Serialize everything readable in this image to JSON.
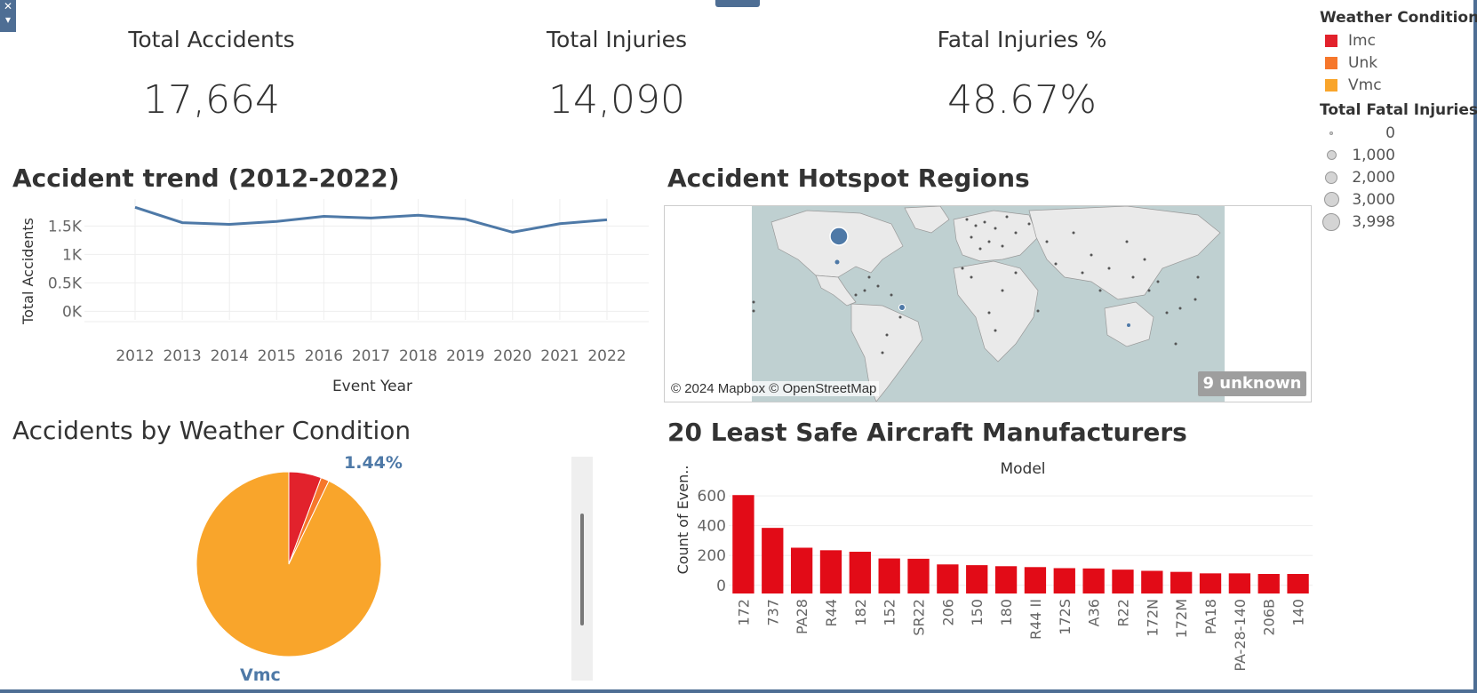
{
  "kpis": [
    {
      "title": "Total Accidents",
      "value": "17,664"
    },
    {
      "title": "Total Injuries",
      "value": "14,090"
    },
    {
      "title": "Fatal Injuries %",
      "value": "48.67%"
    }
  ],
  "legend": {
    "weather_title": "Weather Condition",
    "weather_items": [
      {
        "label": "Imc",
        "color": "#e2222c"
      },
      {
        "label": "Unk",
        "color": "#f6772b"
      },
      {
        "label": "Vmc",
        "color": "#f9a52b"
      }
    ],
    "size_title": "Total Fatal Injuries",
    "size_items": [
      "0",
      "1,000",
      "2,000",
      "3,000",
      "3,998"
    ]
  },
  "trend": {
    "title": "Accident trend (2012-2022)",
    "xlabel": "Event Year",
    "ylabel": "Total Accidents",
    "ytick_labels": [
      "0K",
      "0.5K",
      "1K",
      "1.5K"
    ],
    "line_color": "#4e79a7"
  },
  "map": {
    "title": "Accident Hotspot Regions",
    "attribution": "© 2024 Mapbox © OpenStreetMap",
    "unknown_label": "9 unknown"
  },
  "pie": {
    "title": "Accidents by Weather Condition",
    "label_pct": "1.44%",
    "label_main": "Vmc"
  },
  "bars": {
    "title": "20 Least Safe Aircraft Manufacturers",
    "top_label": "Model",
    "ylabel": "Count of Even..",
    "bar_color": "#e20b17"
  },
  "chart_data": [
    {
      "type": "line",
      "title": "Accident trend (2012-2022)",
      "xlabel": "Event Year",
      "ylabel": "Total Accidents",
      "x": [
        2012,
        2013,
        2014,
        2015,
        2016,
        2017,
        2018,
        2019,
        2020,
        2021,
        2022
      ],
      "y": [
        1830,
        1560,
        1530,
        1580,
        1670,
        1640,
        1690,
        1620,
        1390,
        1540,
        1610
      ],
      "yticks": [
        0,
        500,
        1000,
        1500
      ],
      "ylim": [
        -150,
        1850
      ],
      "grid": true
    },
    {
      "type": "pie",
      "title": "Accidents by Weather Condition",
      "labels": [
        "Imc",
        "Unk",
        "Vmc"
      ],
      "values": [
        5.7,
        1.44,
        92.86
      ],
      "colors": [
        "#e2222c",
        "#f6772b",
        "#f9a52b"
      ]
    },
    {
      "type": "bar",
      "title": "20 Least Safe Aircraft Manufacturers",
      "xlabel": "Model",
      "ylabel": "Count of Even..",
      "categories": [
        "172",
        "737",
        "PA28",
        "R44",
        "182",
        "152",
        "SR22",
        "206",
        "150",
        "180",
        "R44 II",
        "172S",
        "A36",
        "R22",
        "172N",
        "172M",
        "PA18",
        "PA-28-140",
        "206B",
        "140"
      ],
      "values": [
        605,
        385,
        252,
        235,
        225,
        180,
        178,
        140,
        135,
        128,
        122,
        115,
        113,
        105,
        97,
        90,
        80,
        80,
        76,
        76
      ],
      "yticks": [
        0,
        200,
        400,
        600
      ],
      "ylim": [
        -55,
        660
      ]
    }
  ]
}
